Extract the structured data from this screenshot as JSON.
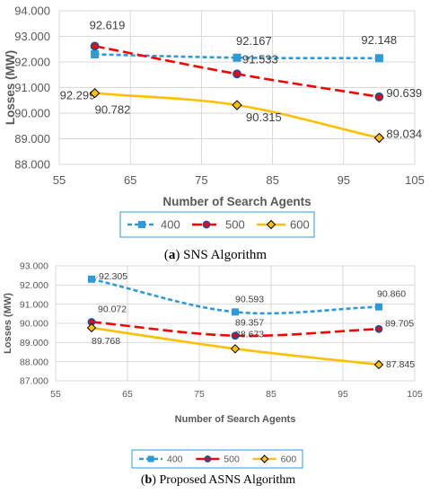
{
  "chart_data": [
    {
      "type": "line",
      "caption_letter": "a",
      "caption_text": " SNS Algorithm",
      "xlabel": "Number of Search Agents",
      "ylabel": "Losses (MW)",
      "xlim": [
        55,
        105
      ],
      "ylim": [
        88.0,
        94.0
      ],
      "xticks": [
        "55",
        "65",
        "75",
        "85",
        "95",
        "105"
      ],
      "yticks": [
        "88.000",
        "89.000",
        "90.000",
        "91.000",
        "92.000",
        "93.000",
        "94.000"
      ],
      "x": [
        60,
        80,
        100
      ],
      "series": [
        {
          "name": "400",
          "values": [
            92.299,
            92.167,
            92.148
          ],
          "labels": [
            "92.299",
            "92.167",
            "92.148"
          ],
          "color": "#2e9bd6",
          "marker": "square",
          "dash": "dashed"
        },
        {
          "name": "500",
          "values": [
            92.619,
            91.533,
            90.639
          ],
          "labels": [
            "92.619",
            "91.533",
            "90.639"
          ],
          "color": "#ff0000",
          "marker": "circle",
          "dash": "longdash"
        },
        {
          "name": "600",
          "values": [
            90.782,
            90.315,
            89.034
          ],
          "labels": [
            "90.782",
            "90.315",
            "89.034"
          ],
          "color": "#ffc000",
          "marker": "diamond",
          "dash": "solid"
        }
      ],
      "grid": true,
      "legend": "bottom"
    },
    {
      "type": "line",
      "caption_letter": "b",
      "caption_text": " Proposed ASNS Algorithm",
      "xlabel": "Number of Search Agents",
      "ylabel": "Losses (MW)",
      "xlim": [
        55,
        105
      ],
      "ylim": [
        87.0,
        93.0
      ],
      "xticks": [
        "55",
        "65",
        "75",
        "85",
        "95",
        "105"
      ],
      "yticks": [
        "87.000",
        "88.000",
        "89.000",
        "90.000",
        "91.000",
        "92.000",
        "93.000"
      ],
      "x": [
        60,
        80,
        100
      ],
      "series": [
        {
          "name": "400",
          "values": [
            92.305,
            90.593,
            90.86
          ],
          "labels": [
            "92.305",
            "90.593",
            "90.860"
          ],
          "color": "#2e9bd6",
          "marker": "square",
          "dash": "dashed"
        },
        {
          "name": "500",
          "values": [
            90.072,
            89.357,
            89.705
          ],
          "labels": [
            "90.072",
            "89.357",
            "89.705"
          ],
          "color": "#ff0000",
          "marker": "circle",
          "dash": "longdash"
        },
        {
          "name": "600",
          "values": [
            89.768,
            88.673,
            87.845
          ],
          "labels": [
            "89.768",
            "88.673",
            "87.845"
          ],
          "color": "#ffc000",
          "marker": "diamond",
          "dash": "solid"
        }
      ],
      "grid": true,
      "legend": "bottom"
    }
  ]
}
